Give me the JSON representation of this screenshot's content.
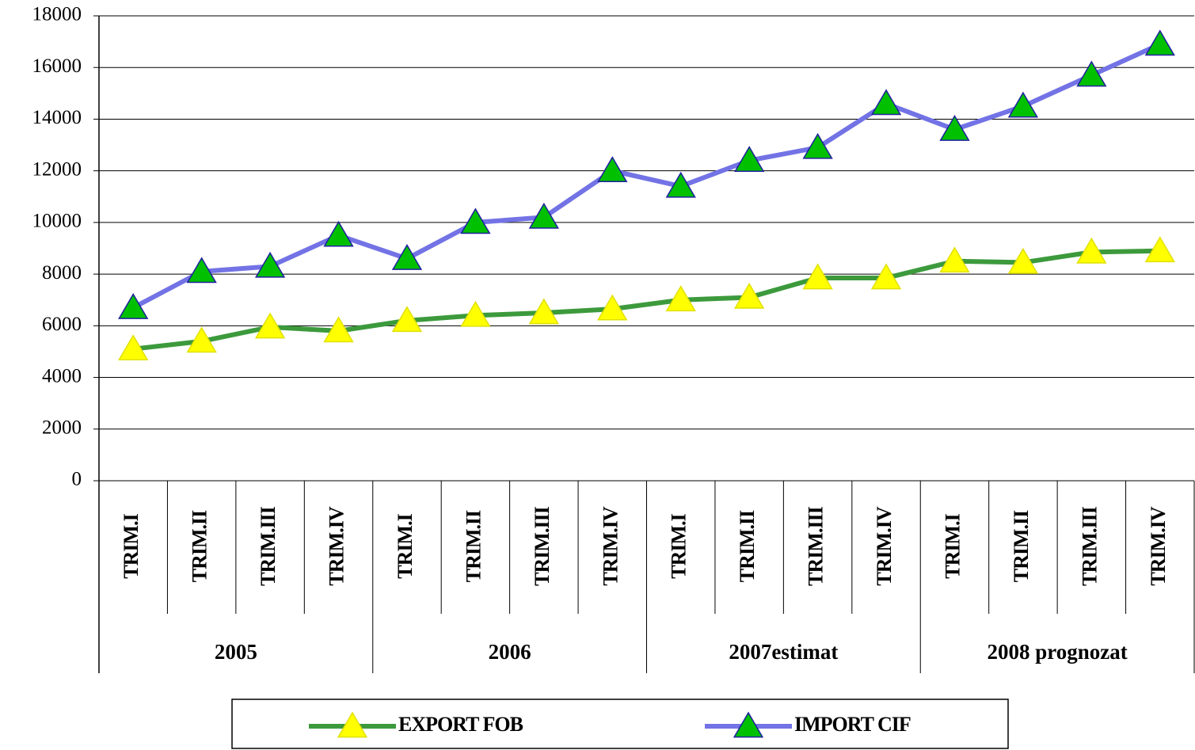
{
  "chart_data": {
    "type": "line",
    "categories": [
      "TRIM.I",
      "TRIM.II",
      "TRIM.III",
      "TRIM.IV",
      "TRIM.I",
      "TRIM.II",
      "TRIM.III",
      "TRIM.IV",
      "TRIM.I",
      "TRIM.II",
      "TRIM.III",
      "TRIM.IV",
      "TRIM.I",
      "TRIM.II",
      "TRIM.III",
      "TRIM.IV"
    ],
    "groups": [
      "2005",
      "2006",
      "2007estimat",
      "2008 prognozat"
    ],
    "series": [
      {
        "name": "EXPORT FOB",
        "color": "#3c9a3c",
        "marker_color": "#ffff00",
        "marker_edge": "#e0e000",
        "values": [
          5100,
          5400,
          5950,
          5800,
          6200,
          6400,
          6500,
          6650,
          7000,
          7100,
          7850,
          7850,
          8500,
          8450,
          8850,
          8900
        ]
      },
      {
        "name": "IMPORT CIF",
        "color": "#7373e6",
        "marker_color": "#00c000",
        "marker_edge": "#2020a0",
        "values": [
          6700,
          8100,
          8300,
          9500,
          8600,
          10000,
          10200,
          12000,
          11400,
          12400,
          12900,
          14600,
          13600,
          14500,
          15700,
          16900
        ]
      }
    ],
    "ylim": [
      0,
      18000
    ],
    "yticks": [
      0,
      2000,
      4000,
      6000,
      8000,
      10000,
      12000,
      14000,
      16000,
      18000
    ],
    "grid": true,
    "legend": "bottom"
  }
}
